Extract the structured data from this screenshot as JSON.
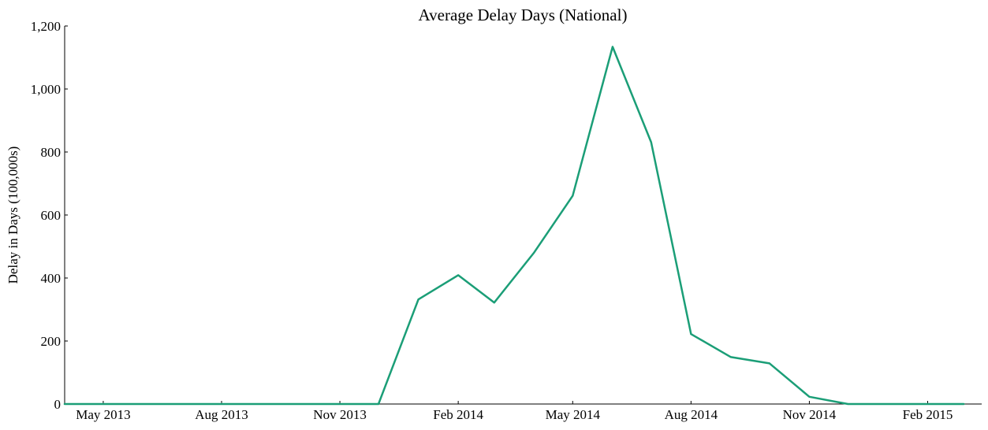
{
  "chart_data": {
    "type": "line",
    "title": "Average Delay Days (National)",
    "xlabel": "",
    "ylabel": "Delay in Days (100,000s)",
    "x_axis_kind": "date",
    "xlim": [
      "2013-04-01",
      "2015-03-15"
    ],
    "ylim": [
      0,
      1200
    ],
    "yticks": [
      0,
      200,
      400,
      600,
      800,
      1000,
      1200
    ],
    "ytick_labels": [
      "0",
      "200",
      "400",
      "600",
      "800",
      "1,000",
      "1,200"
    ],
    "xticks": [
      "2013-05-01",
      "2013-08-01",
      "2013-11-01",
      "2014-02-01",
      "2014-05-01",
      "2014-08-01",
      "2014-11-01",
      "2015-02-01"
    ],
    "xtick_labels": [
      "May 2013",
      "Aug 2013",
      "Nov 2013",
      "Feb 2014",
      "May 2014",
      "Aug 2014",
      "Nov 2014",
      "Feb 2015"
    ],
    "grid": false,
    "line_color": "#1b9e77",
    "series": [
      {
        "x": [
          "2013-04-01",
          "2013-05-01",
          "2013-06-01",
          "2013-07-01",
          "2013-08-01",
          "2013-09-01",
          "2013-10-01",
          "2013-11-01",
          "2013-12-01",
          "2014-01-01",
          "2014-02-01",
          "2014-03-01",
          "2014-04-01",
          "2014-05-01",
          "2014-06-01",
          "2014-07-01",
          "2014-08-01",
          "2014-09-01",
          "2014-10-01",
          "2014-11-01",
          "2014-12-01",
          "2015-01-01",
          "2015-02-01",
          "2015-03-01"
        ],
        "values": [
          0,
          0,
          0,
          0,
          0,
          0,
          0,
          0,
          0,
          332,
          409,
          322,
          481,
          661,
          1134,
          831,
          222,
          149,
          129,
          23,
          0,
          0,
          0,
          0
        ]
      }
    ]
  }
}
